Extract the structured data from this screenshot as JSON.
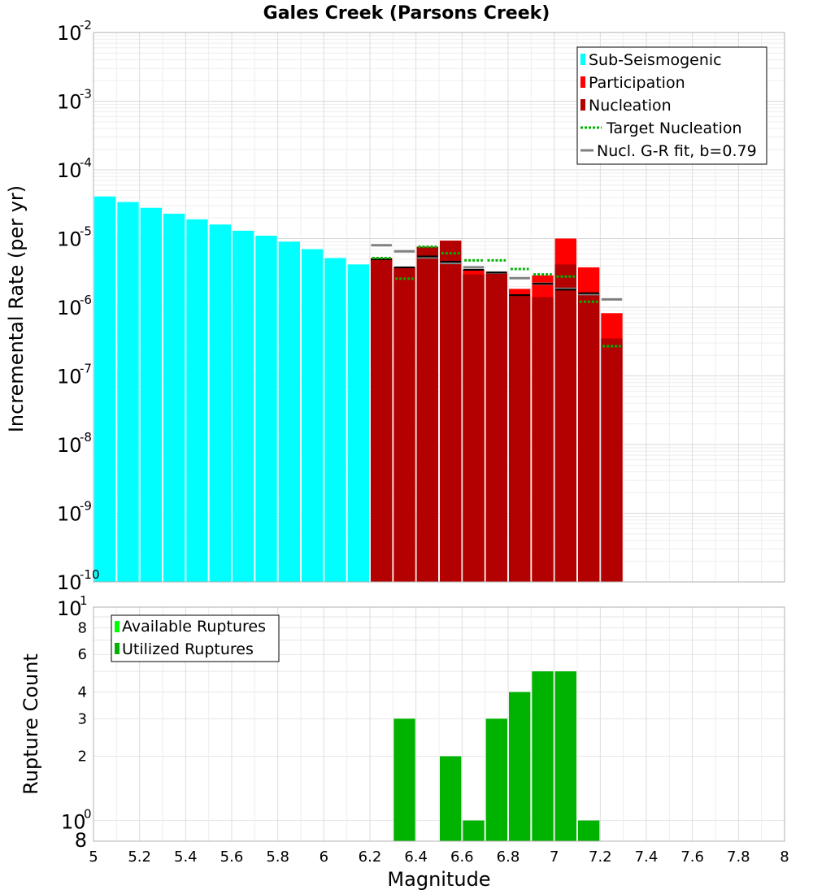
{
  "chart_data": [
    {
      "type": "bar",
      "title": "Gales Creek (Parsons Creek)",
      "xlabel": "Magnitude",
      "ylabel": "Incremental Rate (per yr)",
      "yscale": "log",
      "xlim": [
        5,
        8
      ],
      "ylim": [
        1e-10,
        0.01
      ],
      "ytick_exponents": [
        "-2",
        "-3",
        "-4",
        "-5",
        "-6",
        "-7",
        "-8",
        "-9",
        "-10"
      ],
      "ytick_base": "10",
      "legend_position": "top-right",
      "series": [
        {
          "name": "Sub-Seismogenic",
          "color": "#00ffff",
          "kind": "bar",
          "x": [
            5.05,
            5.15,
            5.25,
            5.35,
            5.45,
            5.55,
            5.65,
            5.75,
            5.85,
            5.95,
            6.05,
            6.15
          ],
          "values": [
            4.1e-05,
            3.4e-05,
            2.8e-05,
            2.3e-05,
            1.9e-05,
            1.6e-05,
            1.3e-05,
            1.1e-05,
            9e-06,
            7e-06,
            5.2e-06,
            4.2e-06
          ]
        },
        {
          "name": "Participation",
          "color": "#ff0000",
          "kind": "bar",
          "x": [
            6.25,
            6.35,
            6.45,
            6.55,
            6.65,
            6.75,
            6.85,
            6.95,
            7.05,
            7.15,
            7.25
          ],
          "values": [
            5.2e-06,
            3.8e-06,
            7.6e-06,
            9.3e-06,
            3.5e-06,
            3.2e-06,
            1.85e-06,
            2.9e-06,
            1e-05,
            3.8e-06,
            8.2e-07
          ]
        },
        {
          "name": "Nucleation",
          "color": "#b30000",
          "kind": "bar",
          "x": [
            6.25,
            6.35,
            6.45,
            6.55,
            6.65,
            6.75,
            6.85,
            6.95,
            7.05,
            7.15,
            7.25
          ],
          "values": [
            5e-06,
            3.8e-06,
            7.6e-06,
            9.3e-06,
            3e-06,
            3.1e-06,
            1.5e-06,
            1.4e-06,
            4.2e-06,
            1.6e-06,
            3.5e-07
          ]
        },
        {
          "name": "Target Nucleation",
          "color": "#00b300",
          "kind": "dotted-step",
          "x": [
            6.25,
            6.35,
            6.45,
            6.55,
            6.65,
            6.75,
            6.85,
            6.95,
            7.05,
            7.15,
            7.25
          ],
          "values": [
            5.2e-06,
            2.6e-06,
            7.6e-06,
            6.1e-06,
            4.8e-06,
            4.8e-06,
            3.6e-06,
            3e-06,
            2.8e-06,
            1.2e-06,
            2.7e-07
          ]
        },
        {
          "name": "Nucl. G-R fit, b=0.79",
          "color": "#808080",
          "kind": "step",
          "x": [
            6.25,
            6.35,
            6.45,
            6.55,
            6.65,
            6.75,
            6.85,
            6.95,
            7.05,
            7.15,
            7.25
          ],
          "values": [
            8e-06,
            6.5e-06,
            5.3e-06,
            4.4e-06,
            3.8e-06,
            3.2e-06,
            2.65e-06,
            2.2e-06,
            1.85e-06,
            1.55e-06,
            1.3e-06
          ]
        }
      ],
      "nucleation_markers": {
        "color": "#000000",
        "x": [
          6.25,
          6.35,
          6.45,
          6.55,
          6.65,
          6.75,
          6.85,
          6.95,
          7.05,
          7.15
        ],
        "values": [
          5e-06,
          3.8e-06,
          5.5e-06,
          4.6e-06,
          3.5e-06,
          3.2e-06,
          1.5e-06,
          2.2e-06,
          1.8e-06,
          1.6e-06
        ]
      }
    },
    {
      "type": "bar",
      "xlabel": "Magnitude",
      "ylabel": "Rupture Count",
      "yscale": "log",
      "xlim": [
        5,
        8
      ],
      "ylim": [
        0.8,
        10
      ],
      "xticks": [
        "5",
        "5.2",
        "5.4",
        "5.6",
        "5.8",
        "6",
        "6.2",
        "6.4",
        "6.6",
        "6.8",
        "7",
        "7.2",
        "7.4",
        "7.6",
        "7.8",
        "8"
      ],
      "yticks_minor": [
        "8",
        "6",
        "4",
        "3",
        "2"
      ],
      "ytick_major_top": "10",
      "ytick_major_top_exp": "1",
      "ytick_major_bottom": "10",
      "ytick_major_bottom_exp": "0",
      "ytick_bottom": "8",
      "legend_position": "top-left",
      "series": [
        {
          "name": "Available Ruptures",
          "color": "#00ff00",
          "x": [
            6.35,
            6.55,
            6.65,
            6.75,
            6.85,
            6.95,
            7.05,
            7.15
          ],
          "values": [
            3,
            2,
            1,
            3,
            4,
            5,
            5,
            1
          ]
        },
        {
          "name": "Utilized Ruptures",
          "color": "#00b300",
          "x": [
            6.35,
            6.55,
            6.65,
            6.75,
            6.85,
            6.95,
            7.05,
            7.15
          ],
          "values": [
            3,
            2,
            1,
            3,
            4,
            5,
            5,
            1
          ]
        }
      ]
    }
  ]
}
